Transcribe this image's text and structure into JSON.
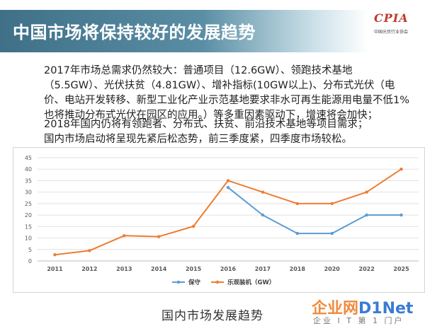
{
  "slide": {
    "title": "中国市场将保持较好的发展趋势",
    "logo_mark": "CPIA",
    "logo_sub": "中国光伏行业协会",
    "paragraph1": "2017年市场总需求仍然较大：普通项目（12.6GW）、领跑技术基地（5.5GW）、光伏扶贫（4.81GW）、增补指标(10GW以上)、分布式光伏（电价、电站开发转移、新型工业化产业示范基地要求非水可再生能源用电量不低1%也将推动分布式光伏在园区的应用。）等多重因素驱动下，增速将会加快；",
    "paragraph2_line1": "2018年国内仍将有领跑者、分布式、扶贫、前沿技术基地等项目需求；",
    "paragraph2_line2": "国内市场启动将呈现先紧后松态势，前三季度紧，四季度市场较松。",
    "caption": "国内市场发展趋势"
  },
  "watermark": {
    "main_cn": "企业网",
    "main_en": "D1Net",
    "sub": "企业 I T 第 1 门户"
  },
  "chart_data": {
    "type": "line",
    "categories": [
      "2011",
      "2012",
      "2013",
      "2014",
      "2015",
      "2016",
      "2017",
      "2018",
      "2020",
      "2022",
      "2025"
    ],
    "series": [
      {
        "name": "保守",
        "color": "#5b9bd5",
        "values": [
          null,
          null,
          null,
          null,
          null,
          32,
          20,
          12,
          12,
          20,
          20
        ]
      },
      {
        "name": "乐观装机（GW）",
        "color": "#ed7d31",
        "values": [
          2.7,
          4.5,
          11,
          10.6,
          15.1,
          35,
          30,
          25,
          25,
          30,
          40
        ]
      }
    ],
    "ylim": [
      0,
      45
    ],
    "yticks": [
      0,
      5,
      10,
      15,
      20,
      25,
      30,
      35,
      40,
      45
    ],
    "grid": true,
    "legend_position": "bottom-center",
    "title": "",
    "xlabel": "",
    "ylabel": ""
  }
}
